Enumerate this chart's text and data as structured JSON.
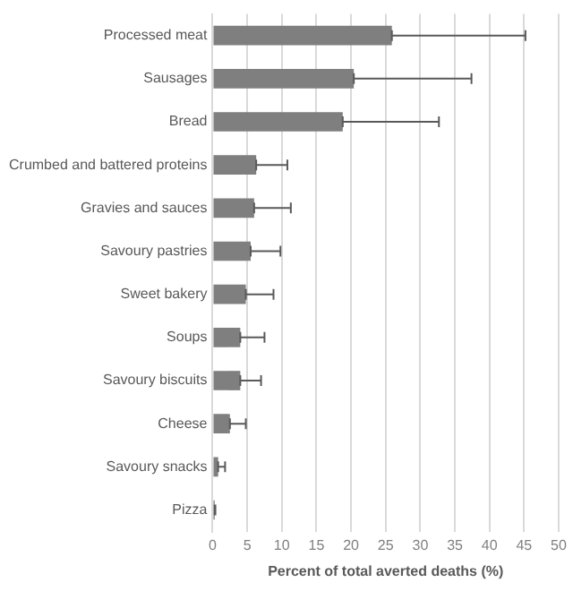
{
  "chart_data": {
    "type": "bar",
    "orientation": "horizontal",
    "xlabel": "Percent of total averted deaths (%)",
    "categories": [
      "Processed meat",
      "Sausages",
      "Bread",
      "Crumbed and battered proteins",
      "Gravies and sauces",
      "Savoury pastries",
      "Sweet bakery",
      "Soups",
      "Savoury biscuits",
      "Cheese",
      "Savoury snacks",
      "Pizza"
    ],
    "values": [
      25.9,
      20.4,
      18.8,
      6.3,
      6.0,
      5.5,
      4.8,
      4.0,
      4.0,
      2.5,
      0.8,
      0.3
    ],
    "errors": [
      [
        25.9,
        45.2
      ],
      [
        20.4,
        37.4
      ],
      [
        18.8,
        32.7
      ],
      [
        6.3,
        10.8
      ],
      [
        6.0,
        11.3
      ],
      [
        5.5,
        9.8
      ],
      [
        4.8,
        8.8
      ],
      [
        4.0,
        7.5
      ],
      [
        4.0,
        7.0
      ],
      [
        2.5,
        4.8
      ],
      [
        0.8,
        1.8
      ],
      [
        0.3,
        0.4
      ]
    ],
    "color": "#7f7f7f",
    "xlim": [
      0,
      50
    ],
    "xticks": [
      0,
      5,
      10,
      15,
      20,
      25,
      30,
      35,
      40,
      45,
      50
    ],
    "grid": "x",
    "legend": false
  }
}
